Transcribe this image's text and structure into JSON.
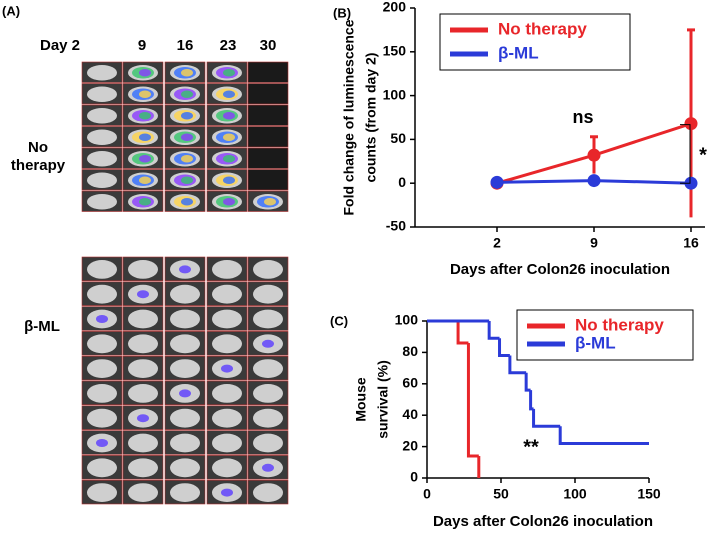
{
  "panel_a": {
    "label": "(A)",
    "days": [
      "Day 2",
      "9",
      "16",
      "23",
      "30"
    ],
    "groups": [
      [
        "No",
        "therapy"
      ],
      [
        "β-ML"
      ]
    ]
  },
  "chart_data": [
    {
      "type": "line",
      "panel_label": "(B)",
      "ylabel": [
        "Fold change of luminescence",
        "counts (from day 2)"
      ],
      "xlabel": "Days after Colon26 inoculation",
      "categories": [
        "2",
        "9",
        "16"
      ],
      "ylim": [
        -50,
        200
      ],
      "yticks": [
        -50,
        0,
        50,
        100,
        150,
        200
      ],
      "legend": "top-right",
      "series": [
        {
          "name": "No therapy",
          "color": "#e8262a",
          "values": [
            0,
            32,
            68
          ],
          "errors": [
            0,
            21,
            107
          ]
        },
        {
          "name": "β-ML",
          "color": "#2b3bd8",
          "values": [
            1,
            3,
            0
          ],
          "errors": [
            0.5,
            1.5,
            1
          ]
        }
      ],
      "annotations": [
        "ns",
        "*"
      ]
    },
    {
      "type": "step",
      "panel_label": "(C)",
      "ylabel": [
        "Mouse",
        "survival (%)"
      ],
      "xlabel": "Days after Colon26 inoculation",
      "xlim": [
        0,
        150
      ],
      "xticks": [
        0,
        50,
        100,
        150
      ],
      "ylim": [
        0,
        100
      ],
      "yticks": [
        0,
        20,
        40,
        60,
        80,
        100
      ],
      "legend": "top-right",
      "series": [
        {
          "name": "No therapy",
          "color": "#e8262a",
          "x": [
            0,
            21,
            28,
            35
          ],
          "values": [
            100,
            86,
            14,
            0
          ]
        },
        {
          "name": "β-ML",
          "color": "#2b3bd8",
          "x": [
            0,
            42,
            49,
            56,
            67,
            70,
            72,
            90,
            150
          ],
          "values": [
            100,
            89,
            78,
            67,
            56,
            44,
            33,
            22,
            22
          ]
        }
      ],
      "annotations": [
        "**"
      ]
    }
  ]
}
